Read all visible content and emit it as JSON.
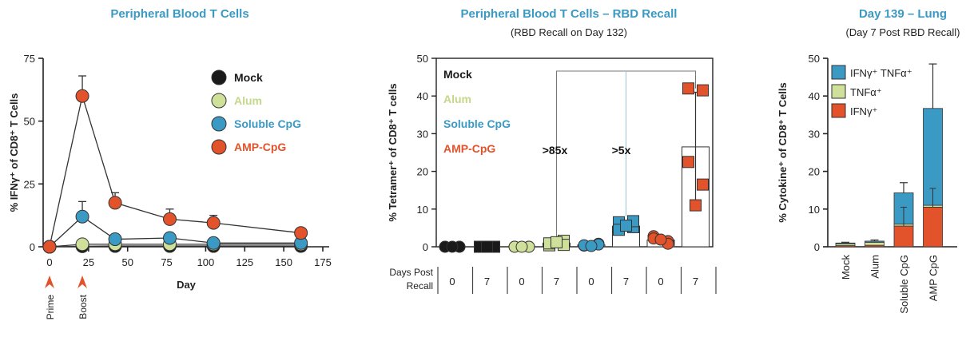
{
  "colors": {
    "mock": "#1a1a1a",
    "alum": "#cfe09a",
    "soluble": "#3b9ac4",
    "amp": "#e2522b",
    "title": "#3b9ac4",
    "alum_text": "#c4d88a"
  },
  "chart_data": [
    {
      "type": "line",
      "title": "Peripheral Blood T Cells",
      "xlabel": "Day",
      "ylabel": "% IFNγ⁺ of CD8⁺ T Cells",
      "xlim": [
        0,
        175
      ],
      "ylim": [
        0,
        75
      ],
      "xticks": [
        "0",
        "25",
        "50",
        "75",
        "100",
        "125",
        "150",
        "175"
      ],
      "yticks": [
        "0",
        "25",
        "50",
        "75"
      ],
      "markers": [
        {
          "label": "Prime",
          "day": 0
        },
        {
          "label": "Boost",
          "day": 21
        }
      ],
      "series": [
        {
          "name": "Mock",
          "key": "mock",
          "x": [
            0,
            21,
            42,
            77,
            105,
            161
          ],
          "y": [
            0,
            0.2,
            0.3,
            0.3,
            0.3,
            0.3
          ],
          "err": [
            0,
            0,
            0,
            0,
            0,
            0
          ]
        },
        {
          "name": "Alum",
          "key": "alum",
          "x": [
            0,
            21,
            42,
            77,
            105,
            161
          ],
          "y": [
            0,
            1,
            1,
            1,
            1,
            1
          ],
          "err": [
            0,
            0.5,
            0.5,
            0.5,
            0.5,
            0.5
          ]
        },
        {
          "name": "Soluble CpG",
          "key": "soluble",
          "x": [
            0,
            21,
            42,
            77,
            105,
            161
          ],
          "y": [
            0,
            12,
            3,
            3.5,
            1.5,
            1.5
          ],
          "err": [
            0,
            6,
            1.5,
            1.5,
            1,
            1
          ]
        },
        {
          "name": "AMP-CpG",
          "key": "amp",
          "x": [
            0,
            21,
            42,
            77,
            105,
            161
          ],
          "y": [
            0,
            60,
            17.5,
            11,
            9.5,
            5.5
          ],
          "err": [
            0,
            8,
            4,
            4,
            3,
            1.5
          ]
        }
      ]
    },
    {
      "type": "scatter",
      "title": "Peripheral Blood T Cells – RBD Recall",
      "subtitle": "(RBD Recall on Day 132)",
      "ylabel": "% Tetramer⁺ of CD8⁺ T cells",
      "ylim": [
        0,
        50
      ],
      "yticks": [
        "0",
        "10",
        "20",
        "30",
        "40",
        "50"
      ],
      "row_label": [
        "Days Post",
        "Recall"
      ],
      "legend": [
        "Mock",
        "Alum",
        "Soluble CpG",
        "AMP-CpG"
      ],
      "groups": [
        {
          "series": "Mock",
          "key": "mock",
          "day": "0",
          "mean": 0,
          "points": [
            0,
            0,
            0,
            0,
            0
          ],
          "err": 0
        },
        {
          "series": "Mock",
          "key": "mock",
          "day": "7",
          "mean": 0,
          "points": [
            0,
            0,
            0,
            0,
            0
          ],
          "err": 0
        },
        {
          "series": "Alum",
          "key": "alum",
          "day": "0",
          "mean": 0,
          "points": [
            0,
            0,
            0,
            0,
            0
          ],
          "err": 0.3
        },
        {
          "series": "Alum",
          "key": "alum",
          "day": "7",
          "mean": 1,
          "points": [
            0.4,
            1.6,
            0.9,
            0.5,
            1.2
          ],
          "err": 0.8
        },
        {
          "series": "Soluble CpG",
          "key": "soluble",
          "day": "0",
          "mean": 0.5,
          "points": [
            0.3,
            0.8,
            0.4,
            0.6,
            0.2
          ],
          "err": 0.5
        },
        {
          "series": "Soluble CpG",
          "key": "soluble",
          "day": "7",
          "mean": 5.5,
          "points": [
            6.5,
            5.2,
            4.5,
            6.8,
            5.6
          ],
          "err": 1.5
        },
        {
          "series": "AMP-CpG",
          "key": "amp",
          "day": "0",
          "mean": 1.8,
          "points": [
            2.8,
            1.5,
            2.2,
            0.8,
            1.9
          ],
          "err": 1
        },
        {
          "series": "AMP-CpG",
          "key": "amp",
          "day": "7",
          "mean": 26.5,
          "points": [
            42,
            41.5,
            22.5,
            16.5,
            11
          ],
          "err": 14.5
        }
      ],
      "annotations": [
        ">85x",
        ">5x"
      ]
    },
    {
      "type": "bar",
      "stacked": true,
      "title": "Day 139 – Lung",
      "subtitle": "(Day 7 Post RBD Recall)",
      "ylabel": "% Cytokine⁺ of CD8⁺ T Cells",
      "ylim": [
        0,
        50
      ],
      "yticks": [
        "0",
        "10",
        "20",
        "30",
        "40",
        "50"
      ],
      "categories": [
        "Mock",
        "Alum",
        "Soluble CpG",
        "AMP CpG"
      ],
      "series": [
        {
          "name": "IFNγ⁺",
          "color": "#e2522b",
          "values": [
            0.3,
            0.4,
            5.5,
            10.5
          ]
        },
        {
          "name": "TNFα⁺",
          "color": "#cfe09a",
          "values": [
            0.5,
            0.8,
            0.5,
            0.5
          ]
        },
        {
          "name": "IFNγ⁺ TNFα⁺",
          "color": "#3b9ac4",
          "values": [
            0.2,
            0.3,
            8.3,
            25.7
          ]
        }
      ],
      "error_tops": [
        1.2,
        1.8,
        17,
        48.5
      ],
      "legend_order": [
        "IFNγ⁺ TNFα⁺",
        "TNFα⁺",
        "IFNγ⁺"
      ]
    }
  ]
}
